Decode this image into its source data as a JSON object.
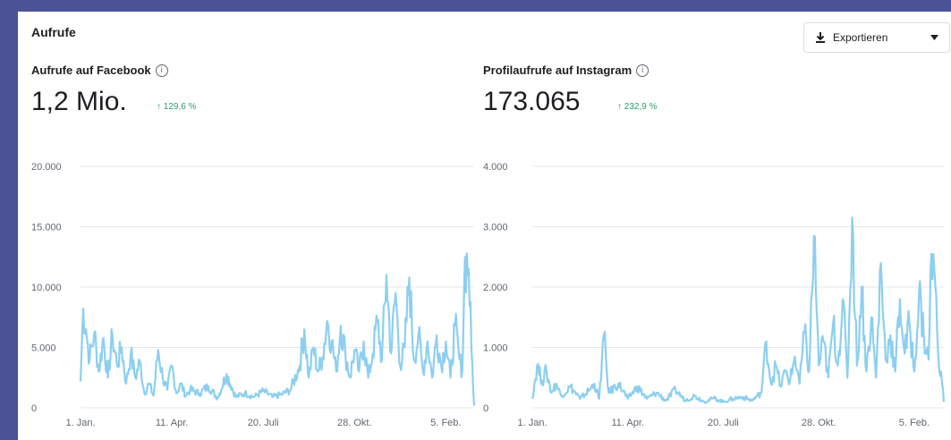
{
  "section": {
    "title": "Aufrufe",
    "export_label": "Exportieren",
    "export_icon": "download-icon",
    "dropdown_icon": "caret-down-icon"
  },
  "panels": [
    {
      "title": "Aufrufe auf Facebook",
      "value": "1,2 Mio.",
      "delta": "↑ 129,6 %"
    },
    {
      "title": "Profilaufrufe auf Instagram",
      "value": "173.065",
      "delta": "↑ 232,9 %"
    }
  ],
  "colors": {
    "line": "#8ccff0",
    "accent_up": "#2f9e6b",
    "grid": "#e6e7ea"
  },
  "chart_data": [
    {
      "type": "area",
      "title": "Aufrufe auf Facebook",
      "ylim": [
        0,
        20000
      ],
      "y_ticks": [
        "0",
        "5.000",
        "10.000",
        "15.000",
        "20.000"
      ],
      "x_tick_labels": [
        "1. Jan.",
        "11. Apr.",
        "20. Juli",
        "28. Okt.",
        "5. Feb."
      ],
      "x_tick_days": [
        0,
        100,
        200,
        300,
        400
      ],
      "x_range": [
        0,
        431
      ],
      "series": [
        {
          "anchors": [
            [
              0,
              2200
            ],
            [
              3,
              8200
            ],
            [
              6,
              6500
            ],
            [
              10,
              4000
            ],
            [
              15,
              6200
            ],
            [
              20,
              3000
            ],
            [
              25,
              5800
            ],
            [
              30,
              2500
            ],
            [
              35,
              6000
            ],
            [
              40,
              3500
            ],
            [
              45,
              5000
            ],
            [
              50,
              2000
            ],
            [
              55,
              4500
            ],
            [
              60,
              2500
            ],
            [
              65,
              3800
            ],
            [
              70,
              1200
            ],
            [
              75,
              2000
            ],
            [
              80,
              1000
            ],
            [
              85,
              4800
            ],
            [
              90,
              2500
            ],
            [
              95,
              1500
            ],
            [
              100,
              3500
            ],
            [
              105,
              1200
            ],
            [
              110,
              2000
            ],
            [
              115,
              1000
            ],
            [
              120,
              1500
            ],
            [
              130,
              1200
            ],
            [
              140,
              1800
            ],
            [
              150,
              800
            ],
            [
              160,
              2800
            ],
            [
              170,
              900
            ],
            [
              180,
              1200
            ],
            [
              190,
              900
            ],
            [
              200,
              1400
            ],
            [
              210,
              900
            ],
            [
              220,
              1100
            ],
            [
              230,
              1500
            ],
            [
              240,
              3500
            ],
            [
              245,
              6500
            ],
            [
              250,
              2500
            ],
            [
              255,
              5000
            ],
            [
              260,
              3000
            ],
            [
              265,
              4200
            ],
            [
              270,
              7200
            ],
            [
              275,
              5500
            ],
            [
              280,
              3000
            ],
            [
              285,
              6800
            ],
            [
              290,
              4500
            ],
            [
              295,
              2500
            ],
            [
              300,
              4800
            ],
            [
              305,
              3000
            ],
            [
              310,
              5500
            ],
            [
              315,
              2500
            ],
            [
              320,
              4500
            ],
            [
              325,
              7200
            ],
            [
              330,
              4000
            ],
            [
              335,
              11000
            ],
            [
              340,
              4500
            ],
            [
              345,
              9500
            ],
            [
              350,
              3500
            ],
            [
              355,
              5000
            ],
            [
              360,
              10800
            ],
            [
              365,
              4000
            ],
            [
              370,
              6000
            ],
            [
              375,
              3000
            ],
            [
              380,
              5500
            ],
            [
              385,
              2500
            ],
            [
              390,
              6000
            ],
            [
              395,
              3500
            ],
            [
              400,
              5500
            ],
            [
              405,
              2500
            ],
            [
              410,
              6800
            ],
            [
              415,
              4000
            ],
            [
              418,
              3000
            ],
            [
              421,
              12500
            ],
            [
              425,
              11500
            ],
            [
              428,
              5000
            ],
            [
              431,
              200
            ]
          ],
          "values": []
        }
      ]
    },
    {
      "type": "area",
      "title": "Profilaufrufe auf Instagram",
      "ylim": [
        0,
        4000
      ],
      "y_ticks": [
        "0",
        "1.000",
        "2.000",
        "3.000",
        "4.000"
      ],
      "x_tick_labels": [
        "1. Jan.",
        "11. Apr.",
        "20. Juli",
        "28. Okt.",
        "5. Feb."
      ],
      "x_tick_days": [
        0,
        100,
        200,
        300,
        400
      ],
      "x_range": [
        0,
        431
      ],
      "series": [
        {
          "anchors": [
            [
              0,
              150
            ],
            [
              5,
              700
            ],
            [
              10,
              450
            ],
            [
              15,
              600
            ],
            [
              20,
              250
            ],
            [
              25,
              400
            ],
            [
              30,
              200
            ],
            [
              40,
              350
            ],
            [
              50,
              150
            ],
            [
              60,
              300
            ],
            [
              65,
              400
            ],
            [
              70,
              150
            ],
            [
              75,
              1200
            ],
            [
              80,
              250
            ],
            [
              90,
              400
            ],
            [
              100,
              150
            ],
            [
              110,
              350
            ],
            [
              120,
              150
            ],
            [
              130,
              250
            ],
            [
              140,
              120
            ],
            [
              150,
              300
            ],
            [
              160,
              120
            ],
            [
              170,
              200
            ],
            [
              180,
              100
            ],
            [
              190,
              160
            ],
            [
              200,
              100
            ],
            [
              210,
              150
            ],
            [
              220,
              180
            ],
            [
              230,
              120
            ],
            [
              240,
              250
            ],
            [
              245,
              1100
            ],
            [
              250,
              400
            ],
            [
              255,
              700
            ],
            [
              260,
              350
            ],
            [
              265,
              600
            ],
            [
              270,
              450
            ],
            [
              275,
              850
            ],
            [
              280,
              400
            ],
            [
              285,
              1250
            ],
            [
              290,
              600
            ],
            [
              295,
              2850
            ],
            [
              300,
              700
            ],
            [
              305,
              1100
            ],
            [
              310,
              500
            ],
            [
              315,
              1400
            ],
            [
              320,
              700
            ],
            [
              325,
              1800
            ],
            [
              330,
              500
            ],
            [
              335,
              3150
            ],
            [
              340,
              700
            ],
            [
              345,
              2000
            ],
            [
              350,
              600
            ],
            [
              355,
              1500
            ],
            [
              360,
              500
            ],
            [
              365,
              2400
            ],
            [
              370,
              800
            ],
            [
              375,
              1200
            ],
            [
              380,
              600
            ],
            [
              385,
              1800
            ],
            [
              390,
              900
            ],
            [
              395,
              1400
            ],
            [
              400,
              600
            ],
            [
              405,
              1900
            ],
            [
              410,
              1200
            ],
            [
              415,
              800
            ],
            [
              418,
              2550
            ],
            [
              421,
              2300
            ],
            [
              425,
              900
            ],
            [
              428,
              600
            ],
            [
              431,
              100
            ]
          ],
          "values": []
        }
      ]
    }
  ]
}
